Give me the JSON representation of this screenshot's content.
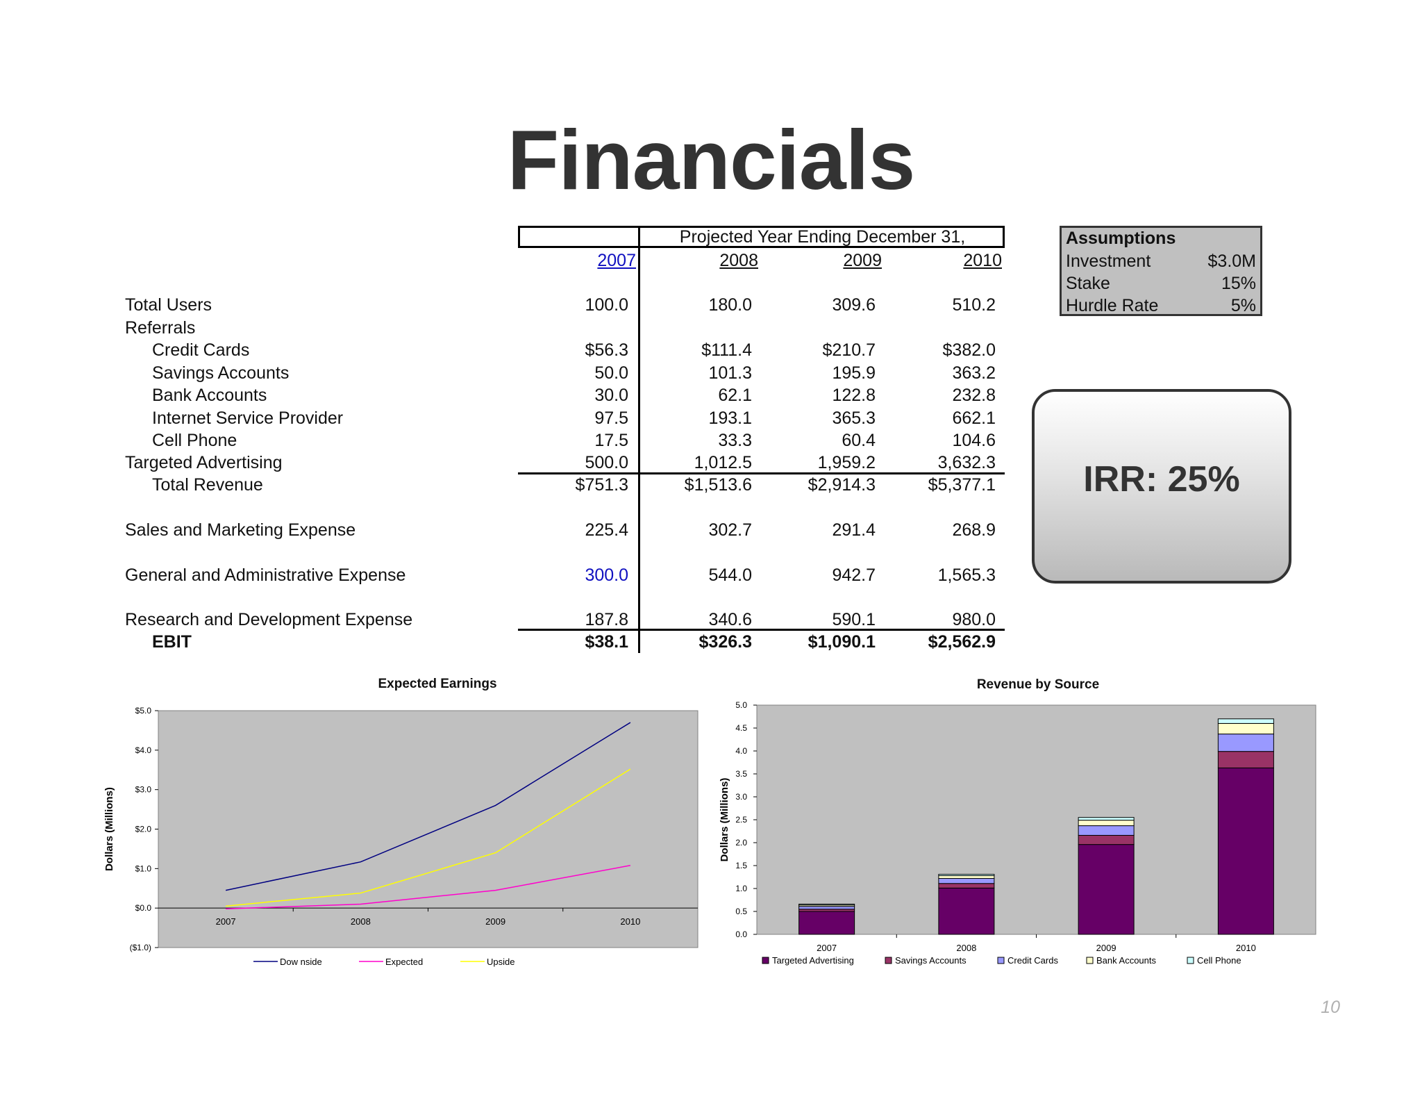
{
  "title": "Financials",
  "table": {
    "header": "Projected Year Ending December 31,",
    "years": [
      "2007",
      "2008",
      "2009",
      "2010"
    ],
    "rows": [
      {
        "label": "Total Users",
        "values": [
          "100.0",
          "180.0",
          "309.6",
          "510.2"
        ]
      },
      {
        "label": "Referrals",
        "values": [
          "",
          "",
          "",
          ""
        ]
      },
      {
        "label": "Credit Cards",
        "values": [
          "$56.3",
          "$111.4",
          "$210.7",
          "$382.0"
        ]
      },
      {
        "label": "Savings Accounts",
        "values": [
          "50.0",
          "101.3",
          "195.9",
          "363.2"
        ]
      },
      {
        "label": "Bank Accounts",
        "values": [
          "30.0",
          "62.1",
          "122.8",
          "232.8"
        ]
      },
      {
        "label": "Internet Service Provider",
        "values": [
          "97.5",
          "193.1",
          "365.3",
          "662.1"
        ]
      },
      {
        "label": "Cell Phone",
        "values": [
          "17.5",
          "33.3",
          "60.4",
          "104.6"
        ]
      },
      {
        "label": "Targeted Advertising",
        "values": [
          "500.0",
          "1,012.5",
          "1,959.2",
          "3,632.3"
        ]
      },
      {
        "label": "Total Revenue",
        "values": [
          "$751.3",
          "$1,513.6",
          "$2,914.3",
          "$5,377.1"
        ]
      },
      {
        "label": "Sales and Marketing Expense",
        "values": [
          "225.4",
          "302.7",
          "291.4",
          "268.9"
        ]
      },
      {
        "label": "General and Administrative Expense",
        "values": [
          "300.0",
          "544.0",
          "942.7",
          "1,565.3"
        ]
      },
      {
        "label": "Research and Development Expense",
        "values": [
          "187.8",
          "340.6",
          "590.1",
          "980.0"
        ]
      },
      {
        "label": "EBIT",
        "values": [
          "$38.1",
          "$326.3",
          "$1,090.1",
          "$2,562.9"
        ]
      }
    ]
  },
  "assumptions": {
    "heading": "Assumptions",
    "items": [
      {
        "label": "Investment",
        "value": "$3.0M"
      },
      {
        "label": "Stake",
        "value": "15%"
      },
      {
        "label": "Hurdle Rate",
        "value": "5%"
      }
    ]
  },
  "irr": "IRR: 25%",
  "page_number": "10",
  "chart_data": [
    {
      "type": "line",
      "title": "Expected Earnings",
      "ylabel": "Dollars (Millions)",
      "xlabel": "",
      "categories": [
        "2007",
        "2008",
        "2009",
        "2010"
      ],
      "ylim": [
        -1.0,
        5.0
      ],
      "yticks": [
        "($1.0)",
        "$0.0",
        "$1.0",
        "$2.0",
        "$3.0",
        "$4.0",
        "$5.0"
      ],
      "grid": false,
      "legend": "bottom",
      "series": [
        {
          "name": "Dow nside",
          "color": "#000080",
          "values": [
            0.45,
            1.17,
            2.6,
            4.7
          ]
        },
        {
          "name": "Expected",
          "color": "#ff00cc",
          "values": [
            -0.02,
            0.1,
            0.45,
            1.08
          ]
        },
        {
          "name": "Upside",
          "color": "#ffff00",
          "values": [
            0.05,
            0.38,
            1.4,
            3.52
          ]
        }
      ]
    },
    {
      "type": "bar",
      "stacked": true,
      "title": "Revenue by Source",
      "ylabel": "Dollars (Millions)",
      "xlabel": "",
      "categories": [
        "2007",
        "2008",
        "2009",
        "2010"
      ],
      "ylim": [
        0.0,
        5.0
      ],
      "yticks": [
        "0.0",
        "0.5",
        "1.0",
        "1.5",
        "2.0",
        "2.5",
        "3.0",
        "3.5",
        "4.0",
        "4.5",
        "5.0"
      ],
      "grid": false,
      "legend": "bottom",
      "series": [
        {
          "name": "Targeted Advertising",
          "color": "#660066",
          "values": [
            0.5,
            1.01,
            1.96,
            3.63
          ]
        },
        {
          "name": "Savings Accounts",
          "color": "#993366",
          "values": [
            0.05,
            0.1,
            0.2,
            0.36
          ]
        },
        {
          "name": "Credit Cards",
          "color": "#9999ff",
          "values": [
            0.06,
            0.11,
            0.21,
            0.38
          ]
        },
        {
          "name": "Bank Accounts",
          "color": "#ffffcc",
          "values": [
            0.03,
            0.06,
            0.12,
            0.23
          ]
        },
        {
          "name": "Cell Phone",
          "color": "#ccffff",
          "values": [
            0.02,
            0.03,
            0.06,
            0.1
          ]
        }
      ]
    }
  ]
}
